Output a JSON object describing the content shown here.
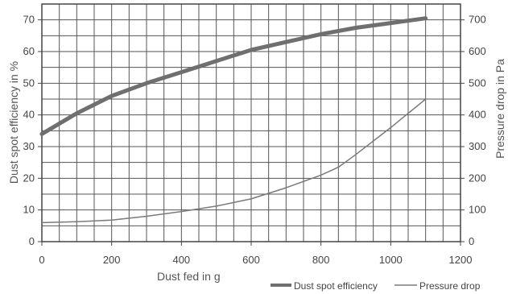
{
  "chart_data": {
    "type": "line",
    "xlabel": "Dust fed in g",
    "ylabel": "Dust spot efficiency in %",
    "y2label": "Pressure drop in Pa",
    "xlim": [
      0,
      1200
    ],
    "ylim": [
      0,
      75
    ],
    "y2lim": [
      0,
      750
    ],
    "grid": true,
    "legend_position": "bottom-right",
    "x_ticks": [
      0,
      200,
      400,
      600,
      800,
      1000,
      1200
    ],
    "y_ticks": [
      0,
      10,
      20,
      30,
      40,
      50,
      60,
      70
    ],
    "y2_ticks": [
      0,
      100,
      200,
      300,
      400,
      500,
      600,
      700
    ],
    "series": [
      {
        "name": "Dust spot efficiency",
        "axis": "left",
        "color": "#6f6f6f",
        "x": [
          0,
          100,
          200,
          300,
          400,
          500,
          600,
          700,
          800,
          900,
          1000,
          1100
        ],
        "y": [
          34,
          40.5,
          46,
          50,
          53.5,
          57,
          60.5,
          63,
          65.5,
          67.5,
          69,
          70.5
        ]
      },
      {
        "name": "Pressure drop",
        "axis": "right",
        "color": "#7a7a7a",
        "x": [
          0,
          100,
          200,
          300,
          400,
          500,
          600,
          700,
          800,
          850,
          900,
          1000,
          1100
        ],
        "y": [
          60,
          63,
          68,
          80,
          95,
          112,
          135,
          170,
          210,
          235,
          275,
          360,
          450
        ]
      }
    ]
  }
}
